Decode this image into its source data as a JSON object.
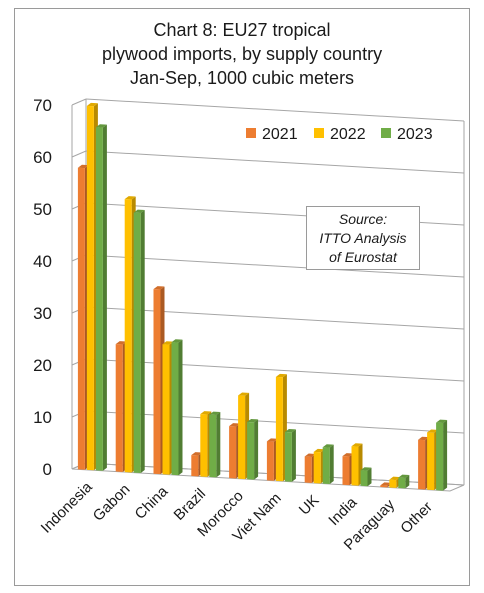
{
  "chart_data": {
    "type": "bar",
    "title_lines": [
      "Chart 8: EU27 tropical",
      "plywood imports, by supply country",
      "Jan-Sep, 1000 cubic meters"
    ],
    "categories": [
      "Indonesia",
      "Gabon",
      "China",
      "Brazil",
      "Morocco",
      "Viet Nam",
      "UK",
      "India",
      "Paraguay",
      "Other"
    ],
    "series": [
      {
        "name": "2021",
        "values": [
          58,
          24.5,
          35.5,
          4,
          10,
          7.5,
          5,
          5.5,
          0.3,
          9.5
        ]
      },
      {
        "name": "2022",
        "values": [
          70,
          52.5,
          25,
          12,
          16,
          20,
          6,
          7.5,
          1.5,
          11
        ]
      },
      {
        "name": "2023",
        "values": [
          66,
          50,
          25.5,
          12,
          11,
          9.5,
          7,
          3,
          2,
          13
        ]
      }
    ],
    "ylim": [
      0,
      70
    ],
    "yticks": [
      0,
      10,
      20,
      30,
      40,
      50,
      60,
      70
    ],
    "grid": true,
    "legend_position": "top-right",
    "source_lines": [
      "Source:",
      "ITTO Analysis",
      "of Eurostat"
    ],
    "colors": {
      "2021": "#ED7D31",
      "2022": "#FFC000",
      "2023": "#70AD47",
      "grid": "#A6A6A6"
    }
  }
}
